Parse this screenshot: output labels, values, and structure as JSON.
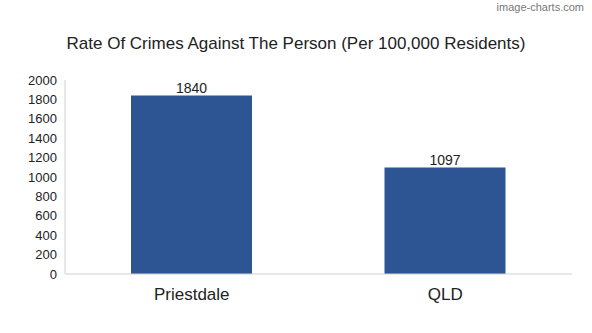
{
  "chart_data": {
    "type": "bar",
    "title": "Rate Of Crimes Against The Person (Per 100,000 Residents)",
    "annotations": [
      "image-charts.com"
    ],
    "categories": [
      "Priestdale",
      "QLD"
    ],
    "values": [
      1840,
      1097
    ],
    "color": "#2d5593",
    "ylim": [
      0,
      2000
    ],
    "yticks": [
      0,
      200,
      400,
      600,
      800,
      1000,
      1200,
      1400,
      1600,
      1800,
      2000
    ],
    "grid": false,
    "data_labels": true
  }
}
